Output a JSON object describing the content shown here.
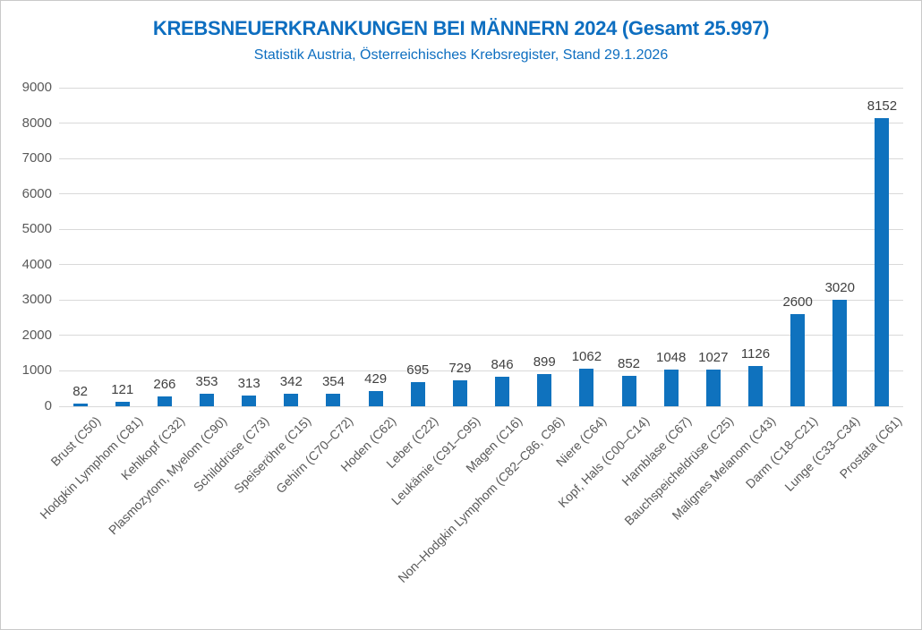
{
  "chart_data": {
    "type": "bar",
    "title": "KREBSNEUERKRANKUNGEN BEI MÄNNERN 2024 (Gesamt 25.997)",
    "subtitle": "Statistik Austria, Österreichisches Krebsregister, Stand 29.1.2026",
    "categories": [
      "Brust (C50)",
      "Hodgkin Lymphom (C81)",
      "Kehlkopf (C32)",
      "Plasmozytom, Myelom (C90)",
      "Schilddrüse (C73)",
      "Speiseröhre (C15)",
      "Gehirn (C70–C72)",
      "Hoden (C62)",
      "Leber (C22)",
      "Leukämie (C91–C95)",
      "Magen (C16)",
      "Non–Hodgkin Lymphom (C82–C86, C96)",
      "Niere (C64)",
      "Kopf, Hals (C00–C14)",
      "Harnblase (C67)",
      "Bauchspeicheldrüse (C25)",
      "Malignes Melanom (C43)",
      "Darm (C18–C21)",
      "Lunge (C33–C34)",
      "Prostata (C61)"
    ],
    "values": [
      82,
      121,
      266,
      353,
      313,
      342,
      354,
      429,
      695,
      729,
      846,
      899,
      1062,
      852,
      1048,
      1027,
      1126,
      2600,
      3020,
      8152
    ],
    "xlabel": "",
    "ylabel": "",
    "ylim": [
      0,
      9000
    ],
    "ytick_interval": 1000,
    "grid": true,
    "legend": "none",
    "colors": {
      "bar": "#0f72be",
      "title": "#0d6ec0",
      "subtitle": "#0d6ec0",
      "value_label": "#404040",
      "axis_tick": "#595959",
      "gridline": "#d9d9d9",
      "chart_border": "#c9c9c9"
    }
  }
}
